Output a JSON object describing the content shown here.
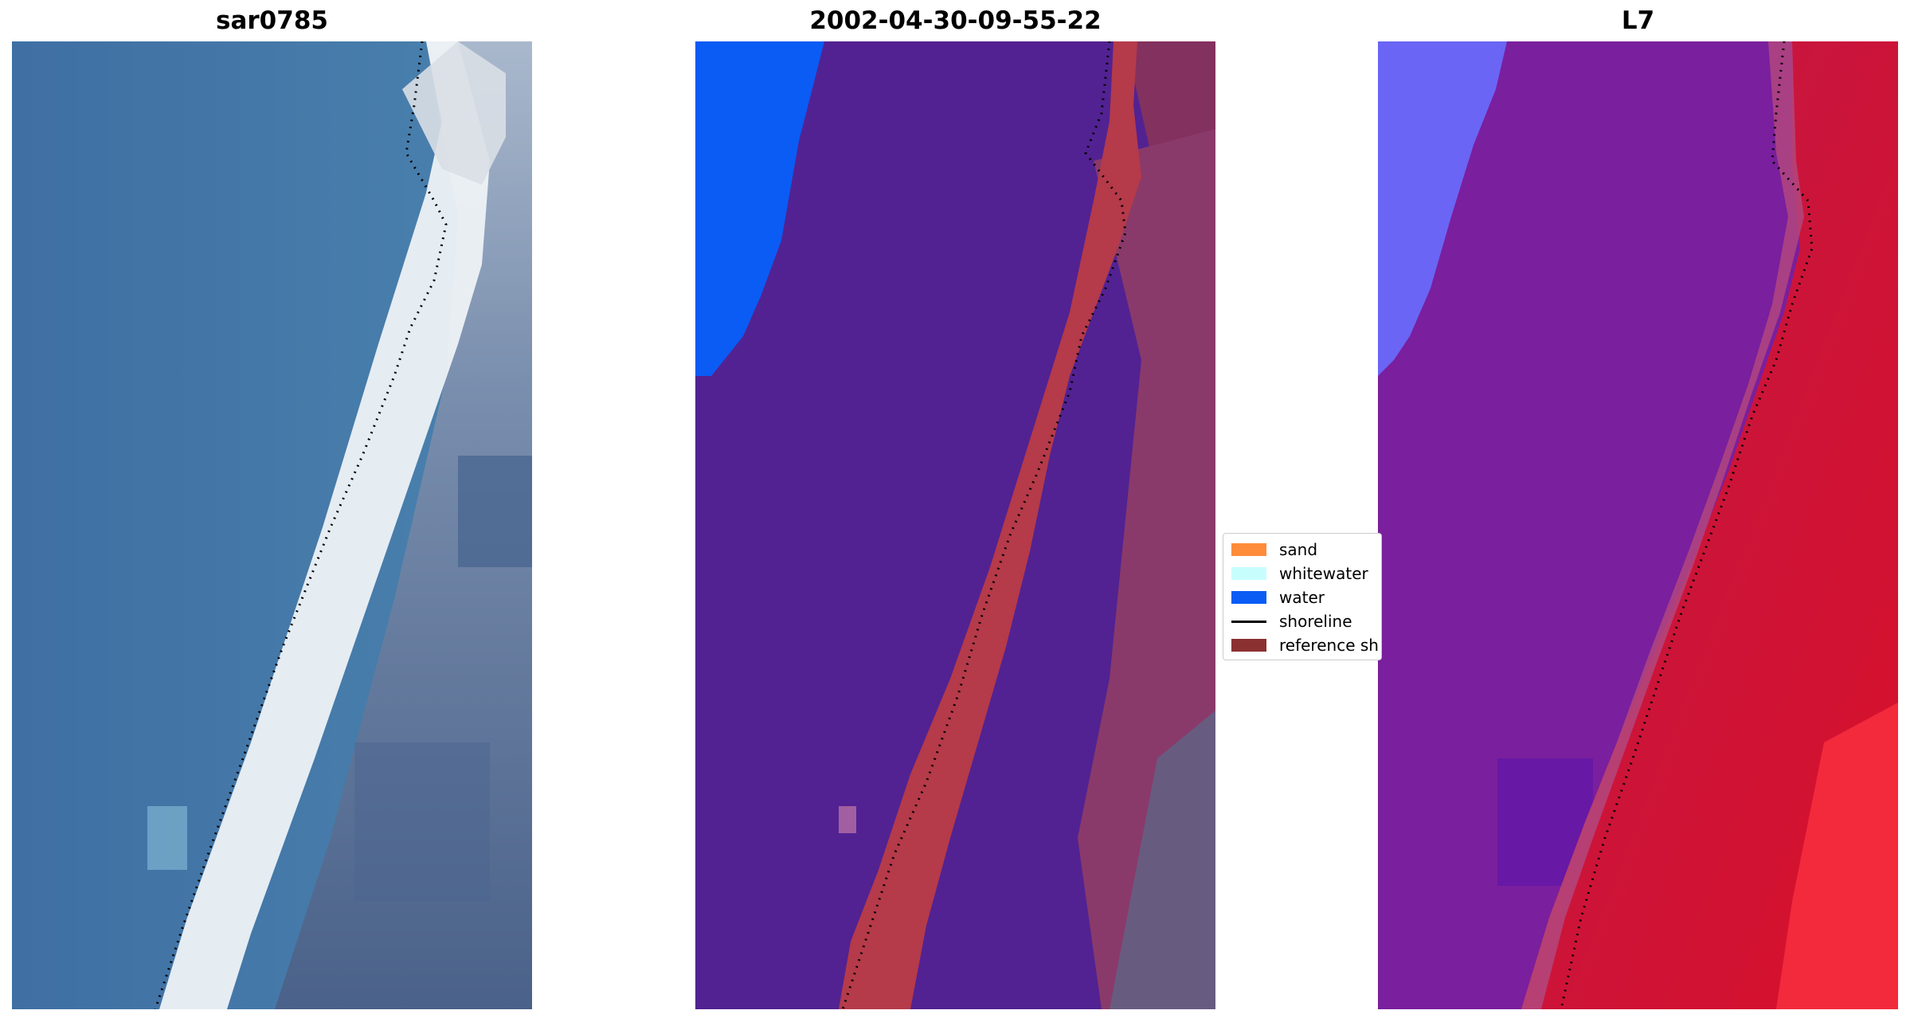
{
  "panels": [
    {
      "title": "sar0785",
      "image": "rgb-satellite-image"
    },
    {
      "title": "2002-04-30-09-55-22",
      "image": "classified-image"
    },
    {
      "title": "L7",
      "image": "false-color-image"
    }
  ],
  "legend": {
    "items": [
      {
        "label": "sand",
        "color": "#ff8c3a",
        "kind": "swatch"
      },
      {
        "label": "whitewater",
        "color": "#c8fdfd",
        "kind": "swatch"
      },
      {
        "label": "water",
        "color": "#0a5cf5",
        "kind": "swatch"
      },
      {
        "label": "shoreline",
        "color": "#000000",
        "kind": "line"
      },
      {
        "label": "reference sh",
        "color": "#8b3030",
        "kind": "swatch"
      }
    ]
  },
  "colors": {
    "ocean_rgb": "#3f74a6",
    "beach_rgb": "#f4f6f8",
    "land_rgb": "#46618a",
    "classified_water_label": "#522292",
    "classified_water_deep": "#0a5cf5",
    "classified_sand": "#b53a4a",
    "classified_land": "#83315f",
    "l7_water": "#7a1f9d",
    "l7_deep": "#6a65f5",
    "l7_land": "#c8103e"
  }
}
